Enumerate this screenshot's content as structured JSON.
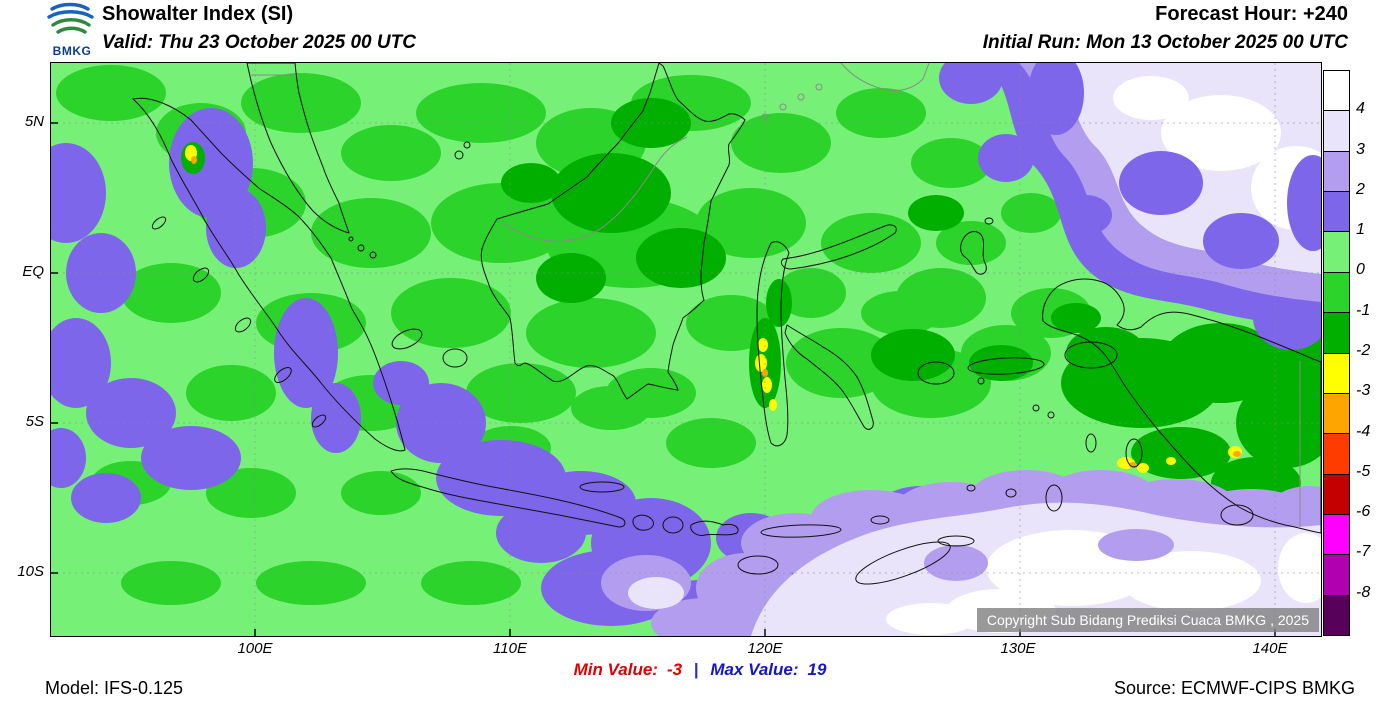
{
  "header": {
    "logo_text": "BMKG",
    "title": "Showalter Index (SI)",
    "valid": "Valid: Thu 23 October 2025 00 UTC",
    "forecast_hour": "Forecast Hour: +240",
    "initial_run": "Initial Run: Mon 13 October 2025 00 UTC"
  },
  "map": {
    "lat_labels": [
      "5N",
      "EQ",
      "5S",
      "10S"
    ],
    "lon_labels": [
      "100E",
      "110E",
      "120E",
      "130E",
      "140E"
    ],
    "copyright": "Copyright Sub Bidang Prediksi Cuaca BMKG , 2025"
  },
  "colorbar": {
    "labels": [
      "4",
      "3",
      "2",
      "1",
      "0",
      "-1",
      "-2",
      "-3",
      "-4",
      "-5",
      "-6",
      "-7",
      "-8"
    ],
    "colors": [
      "#FFFFFF",
      "#E9E4F9",
      "#B39DEF",
      "#7D66EA",
      "#77F077",
      "#2BD32B",
      "#00AF00",
      "#FFFF00",
      "#FFA500",
      "#FF3C00",
      "#C40000",
      "#FF00FF",
      "#B000B0",
      "#58015B"
    ]
  },
  "footer": {
    "model": "Model: IFS-0.125",
    "min_label": "Min Value:",
    "min_value": "-3",
    "separator": "|",
    "max_label": "Max Value:",
    "max_value": "19",
    "source": "Source: ECMWF-CIPS BMKG"
  }
}
